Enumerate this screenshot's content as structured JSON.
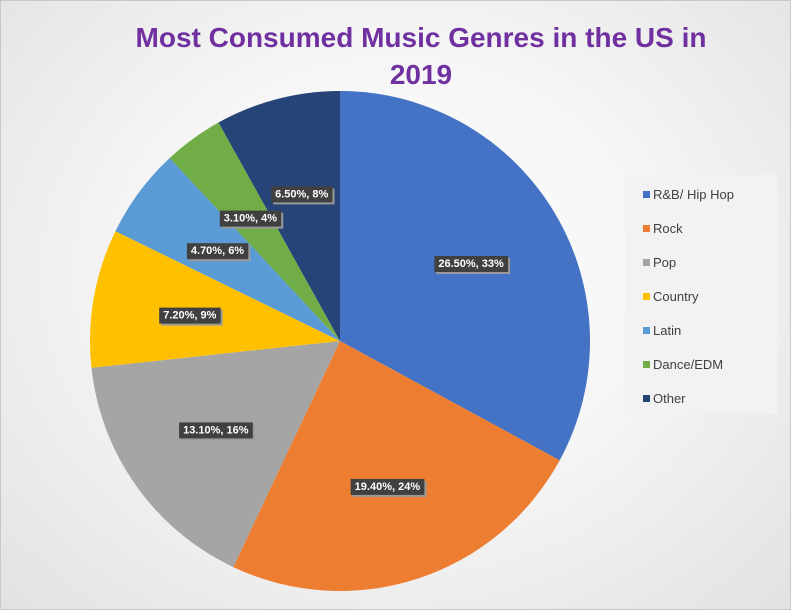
{
  "chart_data": {
    "type": "pie",
    "title": "Most Consumed Music Genres in the US in 2019",
    "categories": [
      "R&B/ Hip Hop",
      "Rock",
      "Pop",
      "Country",
      "Latin",
      "Dance/EDM",
      "Other"
    ],
    "values": [
      26.5,
      19.4,
      13.1,
      7.2,
      4.7,
      3.1,
      6.5
    ],
    "percentages": [
      33,
      24,
      16,
      9,
      6,
      4,
      8
    ],
    "data_labels": [
      "26.50%, 33%",
      "19.40%, 24%",
      "13.10%, 16%",
      "7.20%, 9%",
      "4.70%, 6%",
      "3.10%, 4%",
      "6.50%, 8%"
    ],
    "colors": [
      "#4472c4",
      "#ed7d31",
      "#a5a5a5",
      "#ffc000",
      "#5b9bd5",
      "#70ad47",
      "#264478"
    ],
    "legend_position": "right",
    "start_angle": "12 o'clock, clockwise"
  }
}
